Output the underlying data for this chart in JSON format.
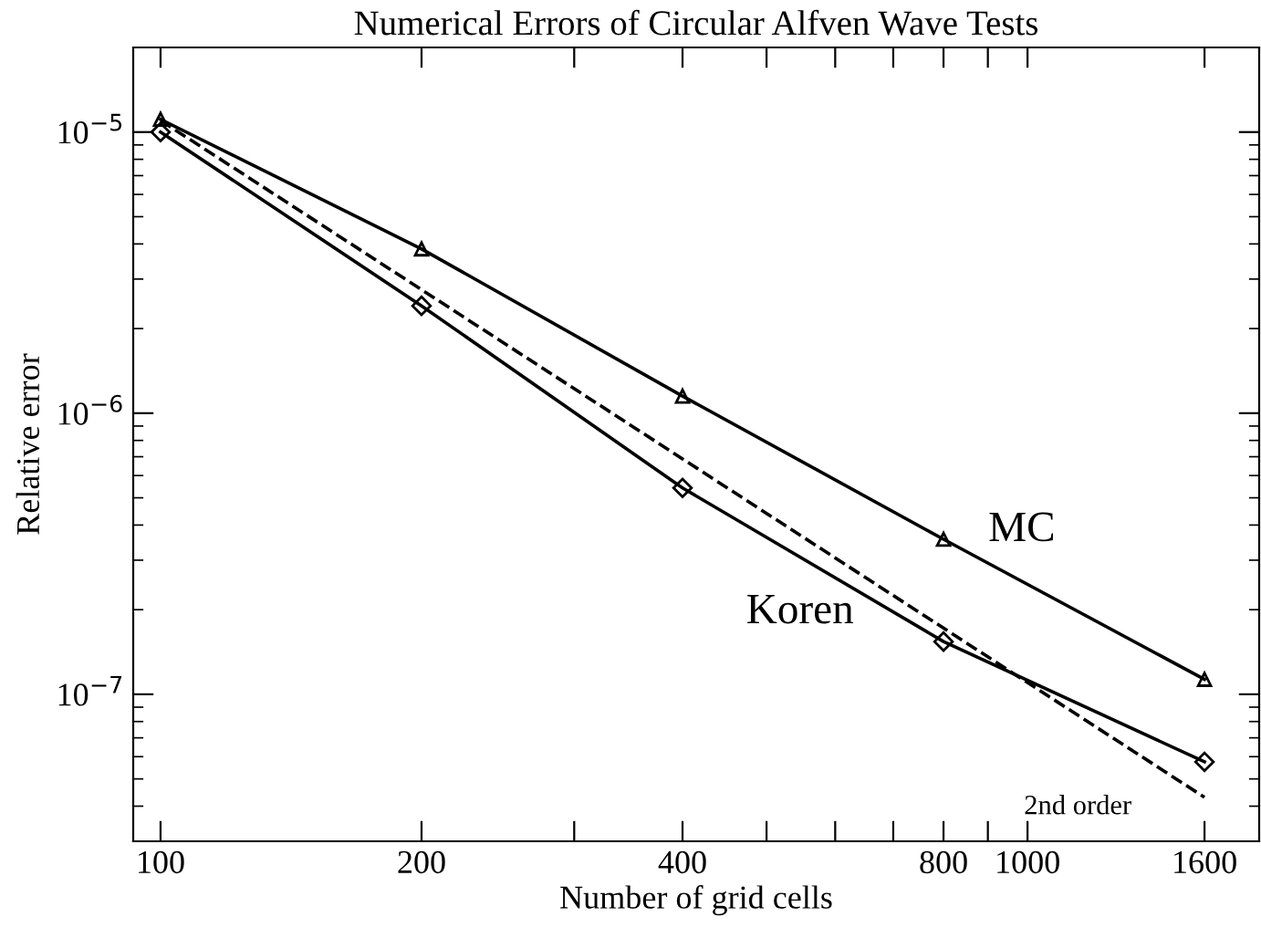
{
  "chart_data": {
    "type": "line",
    "title": "Numerical Errors of Circular Alfven Wave Tests",
    "xlabel": "Number of grid cells",
    "ylabel": "Relative error",
    "log": "xy",
    "grid": false,
    "legend": false,
    "xlim": [
      93,
      1850
    ],
    "xticks": [
      100,
      200,
      {
        "value": 300,
        "label": null
      },
      400,
      {
        "value": 500,
        "label": null
      },
      {
        "value": 600,
        "label": null
      },
      {
        "value": 700,
        "label": null
      },
      800,
      {
        "value": 900,
        "label": null
      },
      1000,
      1600
    ],
    "ylim": [
      3e-08,
      2e-05
    ],
    "yticks": [
      {
        "value": 1e-05,
        "label": "10$^{−5}$"
      },
      {
        "value": 1e-06,
        "label": "10$^{−6}$"
      },
      {
        "value": 1e-07,
        "label": "10$^{−7}$"
      }
    ],
    "series": [
      {
        "name": "MC",
        "color": "#000000",
        "marker": "triangle",
        "line_style": "solid",
        "x": [
          100,
          200,
          400,
          800,
          1600
        ],
        "values": [
          1.11e-05,
          3.84e-06,
          1.15e-06,
          3.56e-07,
          1.13e-07
        ]
      },
      {
        "name": "Koren",
        "color": "#000000",
        "marker": "diamond",
        "line_style": "solid",
        "x": [
          100,
          200,
          400,
          800,
          1600
        ],
        "values": [
          1e-05,
          2.41e-06,
          5.42e-07,
          1.54e-07,
          5.75e-08
        ]
      },
      {
        "name": "2nd order",
        "color": "#000000",
        "marker": "none",
        "line_style": "dashed",
        "x": [
          100,
          1600
        ],
        "values": [
          1.1e-05,
          4.3e-08
        ]
      }
    ]
  }
}
